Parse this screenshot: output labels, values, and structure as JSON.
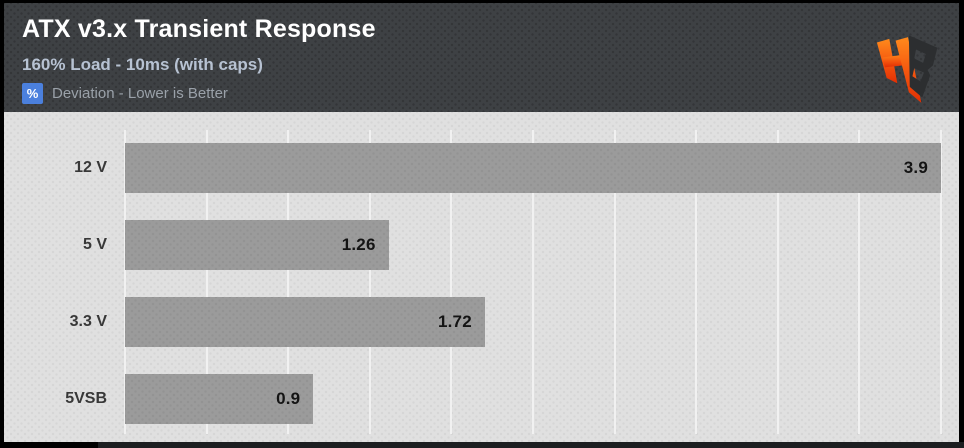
{
  "header": {
    "title": "ATX v3.x Transient Response",
    "subtitle": "160% Load - 10ms (with caps)",
    "legend_symbol": "%",
    "legend_label": "Deviation - Lower is Better",
    "logo_monogram": "HB"
  },
  "colors": {
    "header_bg": "#3e4144",
    "title": "#ffffff",
    "subtitle": "#b7c2d2",
    "legend_badge_bg": "#4b80dd",
    "legend_text": "#9aa1a9",
    "chart_bg": "#e0e0e0",
    "gridline": "#f1f1f1",
    "bar": "#9b9b9b",
    "category_text": "#383838",
    "value_text": "#141414",
    "frame": "#000000",
    "logo_orange_top": "#ff8a1c",
    "logo_orange_bottom": "#e23104",
    "logo_dark": "#2c2e30"
  },
  "chart_data": {
    "type": "bar",
    "orientation": "horizontal",
    "title": "ATX v3.x Transient Response",
    "subtitle": "160% Load - 10ms (with caps)",
    "unit": "%",
    "annotation": "Deviation - Lower is Better",
    "categories": [
      "12 V",
      "5 V",
      "3.3 V",
      "5VSB"
    ],
    "values": [
      3.9,
      1.26,
      1.72,
      0.9
    ],
    "value_labels": [
      "3.9",
      "1.26",
      "1.72",
      "0.9"
    ],
    "xlim": [
      0,
      3.9
    ],
    "grid_divisions": 10,
    "grid": "vertical gridlines only, no axis tick labels",
    "legend_position": "header top-left",
    "value_label_position": "inside bar end"
  }
}
